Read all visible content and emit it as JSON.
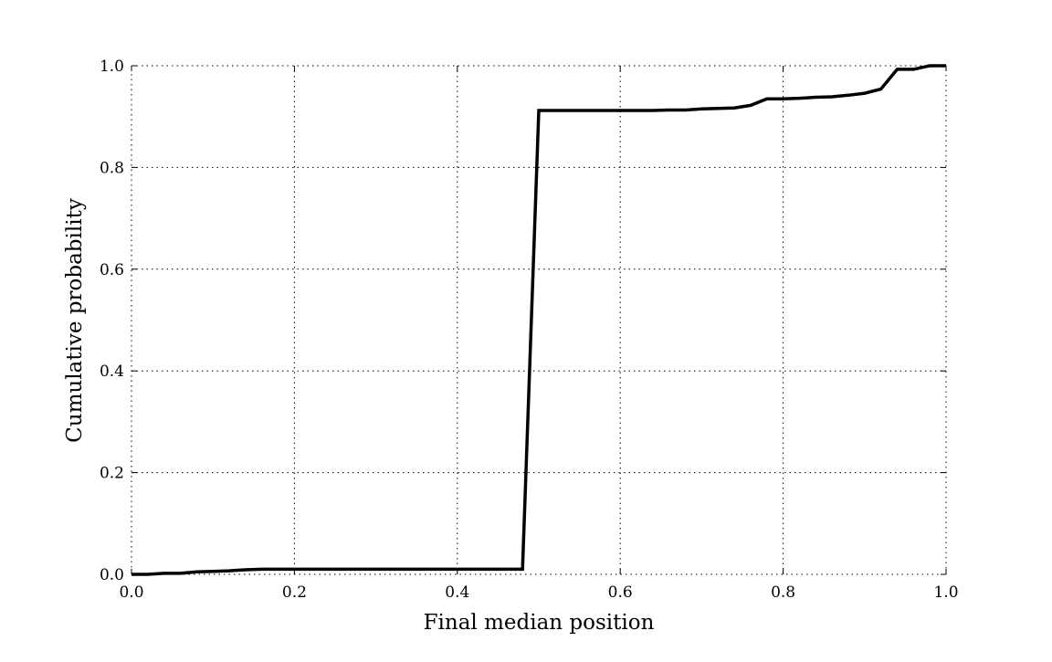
{
  "chart_data": {
    "type": "line",
    "title": "",
    "xlabel": "Final median position",
    "ylabel": "Cumulative probability",
    "xlim": [
      0.0,
      1.0
    ],
    "ylim": [
      0.0,
      1.0
    ],
    "x_ticks": [
      "0.0",
      "0.2",
      "0.4",
      "0.6",
      "0.8",
      "1.0"
    ],
    "y_ticks": [
      "0.0",
      "0.2",
      "0.4",
      "0.6",
      "0.8",
      "1.0"
    ],
    "grid": true,
    "legend": "none",
    "line_color": "#000000",
    "series": [
      {
        "x": [
          0.0,
          0.02,
          0.04,
          0.06,
          0.08,
          0.1,
          0.12,
          0.14,
          0.16,
          0.2,
          0.3,
          0.4,
          0.46,
          0.48,
          0.5,
          0.52,
          0.56,
          0.6,
          0.64,
          0.66,
          0.68,
          0.7,
          0.72,
          0.74,
          0.76,
          0.78,
          0.8,
          0.82,
          0.84,
          0.86,
          0.88,
          0.9,
          0.92,
          0.94,
          0.96,
          0.98,
          1.0
        ],
        "y": [
          0.0,
          0.0,
          0.002,
          0.002,
          0.005,
          0.006,
          0.007,
          0.009,
          0.01,
          0.01,
          0.01,
          0.01,
          0.01,
          0.01,
          0.912,
          0.912,
          0.912,
          0.912,
          0.912,
          0.913,
          0.913,
          0.915,
          0.916,
          0.917,
          0.922,
          0.935,
          0.935,
          0.936,
          0.938,
          0.939,
          0.942,
          0.946,
          0.954,
          0.993,
          0.993,
          1.0,
          1.0
        ]
      }
    ]
  }
}
